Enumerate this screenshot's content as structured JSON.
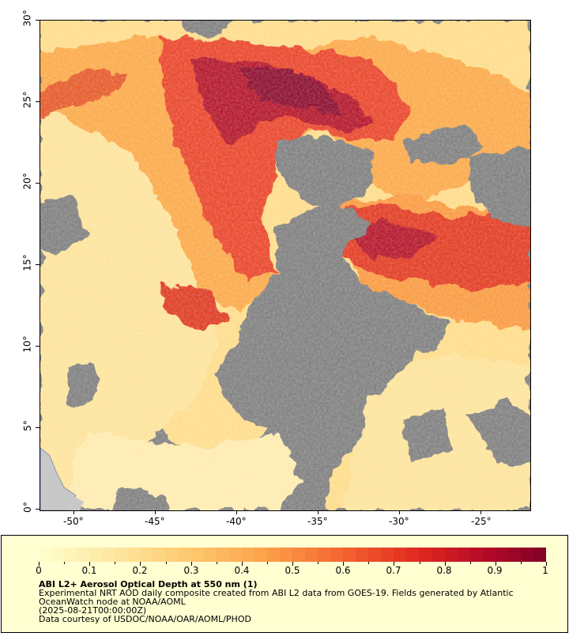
{
  "map": {
    "x_ticks": [
      "-50°",
      "-45°",
      "-40°",
      "-35°",
      "-30°",
      "-25°"
    ],
    "y_ticks": [
      "0°",
      "5°",
      "10°",
      "15°",
      "20°",
      "25°",
      "30°"
    ],
    "lon_range": [
      -52,
      -22
    ],
    "lat_range": [
      0,
      30
    ],
    "colors": {
      "no_data": "#7f7f7f",
      "land": "#c8c8c8",
      "low": "#ffe9a8",
      "mid": "#fbb04f",
      "high": "#e83820",
      "very_high": "#8b0a2e"
    }
  },
  "colorbar": {
    "labels": [
      "0",
      "0.1",
      "0.2",
      "0.3",
      "0.4",
      "0.5",
      "0.6",
      "0.7",
      "0.8",
      "0.9",
      "1"
    ],
    "range": [
      0,
      1
    ]
  },
  "legend": {
    "title": "ABI L2+ Aerosol Optical Depth at 550 nm (1)",
    "line1": "Experimental NRT AOD daily composite created from ABI L2 data from GOES-19. Fields generated by Atlantic",
    "line2": "OceanWatch node at NOAA/AOML",
    "line3": "(2025-08-21T00:00:00Z)",
    "line4": "Data courtesy of USDOC/NOAA/OAR/AOML/PHOD"
  }
}
